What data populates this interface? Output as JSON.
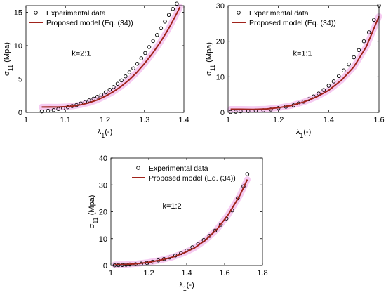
{
  "colors": {
    "marker": "#000000",
    "model_line": "#a0231b",
    "pink_band": "#f0a8e8",
    "axis": "#000000",
    "background": "#ffffff"
  },
  "chart_data": [
    {
      "type": "line",
      "title": "",
      "annotation": "k=2:1",
      "xlabel": "λ1(-)",
      "ylabel": "σ11 (Mpa)",
      "xlim": [
        1,
        1.4
      ],
      "ylim": [
        0,
        16
      ],
      "xticks": [
        "1",
        "1.1",
        "1.2",
        "1.3",
        "1.4"
      ],
      "yticks": [
        "0",
        "5",
        "10",
        "15"
      ],
      "legend_position": "top-left",
      "grid": false,
      "series": [
        {
          "name": "Experimental data",
          "marker": "circle",
          "x": [
            1.04,
            1.056,
            1.07,
            1.082,
            1.094,
            1.106,
            1.117,
            1.128,
            1.139,
            1.15,
            1.16,
            1.171,
            1.181,
            1.191,
            1.202,
            1.212,
            1.222,
            1.232,
            1.242,
            1.252,
            1.262,
            1.272,
            1.282,
            1.292,
            1.302,
            1.312,
            1.322,
            1.332,
            1.342,
            1.352,
            1.362,
            1.372,
            1.382
          ],
          "y": [
            0.15,
            0.25,
            0.35,
            0.5,
            0.62,
            0.78,
            0.95,
            1.1,
            1.35,
            1.55,
            1.8,
            2.05,
            2.35,
            2.65,
            3.0,
            3.4,
            3.8,
            4.3,
            4.8,
            5.4,
            6.0,
            6.6,
            7.3,
            8.1,
            8.9,
            9.8,
            10.7,
            11.6,
            12.6,
            13.6,
            14.6,
            15.5,
            16.3
          ]
        },
        {
          "name": "Proposed model (Eq. (34))",
          "line": "solid",
          "x": [
            1.04,
            1.06,
            1.08,
            1.1,
            1.12,
            1.14,
            1.16,
            1.18,
            1.2,
            1.22,
            1.24,
            1.26,
            1.28,
            1.3,
            1.32,
            1.34,
            1.36,
            1.38,
            1.39
          ],
          "y": [
            0.8,
            0.82,
            0.8,
            0.85,
            0.95,
            1.15,
            1.45,
            1.85,
            2.4,
            3.05,
            3.85,
            4.8,
            5.95,
            7.3,
            8.8,
            10.5,
            12.4,
            14.6,
            15.8
          ]
        }
      ]
    },
    {
      "type": "line",
      "title": "",
      "annotation": "k=1:1",
      "xlabel": "λ1(-)",
      "ylabel": "σ11 (Mpa)",
      "xlim": [
        1,
        1.6
      ],
      "ylim": [
        0,
        30
      ],
      "xticks": [
        "1",
        "1.2",
        "1.4",
        "1.6"
      ],
      "yticks": [
        "0",
        "10",
        "20",
        "30"
      ],
      "legend_position": "top-right",
      "grid": false,
      "series": [
        {
          "name": "Experimental data",
          "marker": "circle",
          "x": [
            1.01,
            1.03,
            1.05,
            1.08,
            1.11,
            1.14,
            1.17,
            1.2,
            1.23,
            1.26,
            1.28,
            1.3,
            1.32,
            1.34,
            1.36,
            1.38,
            1.4,
            1.42,
            1.44,
            1.46,
            1.48,
            1.5,
            1.52,
            1.54,
            1.56,
            1.58,
            1.6
          ],
          "y": [
            0.1,
            0.2,
            0.3,
            0.35,
            0.5,
            0.6,
            0.8,
            1.2,
            1.6,
            2.0,
            2.5,
            3.0,
            3.7,
            4.5,
            5.3,
            6.3,
            7.5,
            8.7,
            10.2,
            11.8,
            13.5,
            15.5,
            17.5,
            20.0,
            22.5,
            26.0,
            30.0
          ]
        },
        {
          "name": "Proposed model (Eq. (34))",
          "line": "solid",
          "x": [
            1.01,
            1.05,
            1.1,
            1.15,
            1.2,
            1.25,
            1.3,
            1.35,
            1.4,
            1.45,
            1.5,
            1.55,
            1.6
          ],
          "y": [
            0.9,
            0.9,
            0.85,
            0.95,
            1.3,
            1.9,
            2.9,
            4.3,
            6.2,
            9.0,
            12.8,
            18.5,
            27.0
          ]
        }
      ]
    },
    {
      "type": "line",
      "title": "",
      "annotation": "k=1:2",
      "xlabel": "λ1(-)",
      "ylabel": "σ11 (Mpa)",
      "xlim": [
        1,
        1.8
      ],
      "ylim": [
        0,
        40
      ],
      "xticks": [
        "1",
        "1.2",
        "1.4",
        "1.6",
        "1.8"
      ],
      "yticks": [
        "0",
        "10",
        "20",
        "30",
        "40"
      ],
      "legend_position": "top-left",
      "grid": false,
      "series": [
        {
          "name": "Experimental data",
          "marker": "circle",
          "x": [
            1.02,
            1.04,
            1.06,
            1.08,
            1.1,
            1.13,
            1.16,
            1.19,
            1.22,
            1.25,
            1.28,
            1.31,
            1.34,
            1.37,
            1.4,
            1.43,
            1.46,
            1.49,
            1.52,
            1.55,
            1.58,
            1.61,
            1.64,
            1.67,
            1.7,
            1.72
          ],
          "y": [
            0.1,
            0.15,
            0.2,
            0.3,
            0.4,
            0.5,
            0.7,
            1.0,
            1.4,
            1.9,
            2.4,
            3.0,
            3.7,
            4.6,
            5.6,
            6.8,
            8.0,
            9.5,
            11.0,
            13.0,
            15.2,
            17.5,
            20.5,
            25.0,
            29.5,
            34.0
          ]
        },
        {
          "name": "Proposed model (Eq. (34))",
          "line": "solid",
          "x": [
            1.02,
            1.08,
            1.14,
            1.2,
            1.26,
            1.32,
            1.38,
            1.44,
            1.5,
            1.56,
            1.62,
            1.68,
            1.72
          ],
          "y": [
            0.3,
            0.4,
            0.7,
            1.2,
            2.0,
            3.0,
            4.5,
            6.5,
            9.5,
            13.5,
            19.0,
            26.0,
            32.0
          ]
        }
      ]
    }
  ]
}
